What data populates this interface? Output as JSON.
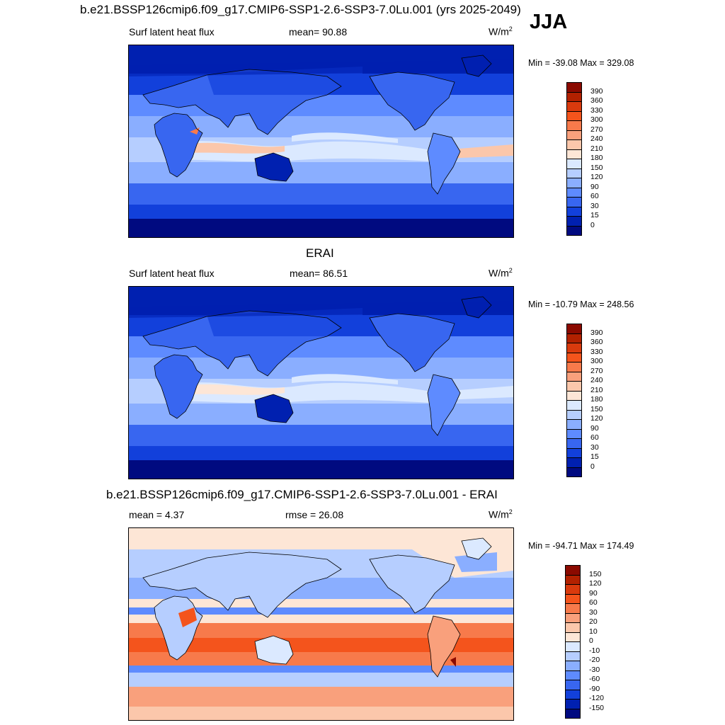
{
  "season": "JJA",
  "units": "W/m",
  "units_exp": "2",
  "panels": [
    {
      "id": "model",
      "title": "b.e21.BSSP126cmip6.f09_g17.CMIP6-SSP1-2.6-SSP3-7.0Lu.001 (yrs 2025-2049)",
      "left_label": "Surf latent heat flux",
      "center_label": "mean=  90.88",
      "minmax": "Min = -39.08 Max = 329.08",
      "colorbar": {
        "labels": [
          "390",
          "360",
          "330",
          "300",
          "270",
          "240",
          "210",
          "180",
          "150",
          "120",
          "90",
          "60",
          "30",
          "15",
          "0"
        ],
        "colors": [
          "#8b0a00",
          "#b22100",
          "#d93a0d",
          "#f4541c",
          "#f77a4b",
          "#f9a07c",
          "#fbc7ab",
          "#fde6d6",
          "#dbe9ff",
          "#b6ceff",
          "#8aaeff",
          "#5e8bff",
          "#3866f0",
          "#1240db",
          "#0020b0",
          "#000a80"
        ]
      }
    },
    {
      "id": "obs",
      "title": "ERAI",
      "left_label": "Surf latent heat flux",
      "center_label": "mean=  86.51",
      "minmax": "Min = -10.79 Max = 248.56",
      "colorbar": {
        "labels": [
          "390",
          "360",
          "330",
          "300",
          "270",
          "240",
          "210",
          "180",
          "150",
          "120",
          "90",
          "60",
          "30",
          "15",
          "0"
        ],
        "colors": [
          "#8b0a00",
          "#b22100",
          "#d93a0d",
          "#f4541c",
          "#f77a4b",
          "#f9a07c",
          "#fbc7ab",
          "#fde6d6",
          "#dbe9ff",
          "#b6ceff",
          "#8aaeff",
          "#5e8bff",
          "#3866f0",
          "#1240db",
          "#0020b0",
          "#000a80"
        ]
      }
    },
    {
      "id": "diff",
      "title": "b.e21.BSSP126cmip6.f09_g17.CMIP6-SSP1-2.6-SSP3-7.0Lu.001 - ERAI",
      "left_label": "mean =   4.37",
      "center_label": "rmse =  26.08",
      "minmax": "Min = -94.71 Max = 174.49",
      "colorbar": {
        "labels": [
          "150",
          "120",
          "90",
          "60",
          "30",
          "20",
          "10",
          "0",
          "-10",
          "-20",
          "-30",
          "-60",
          "-90",
          "-120",
          "-150"
        ],
        "colors": [
          "#8b0a00",
          "#b22100",
          "#d93a0d",
          "#f4541c",
          "#f77a4b",
          "#f9a07c",
          "#fbc7ab",
          "#fde6d6",
          "#dbe9ff",
          "#b6ceff",
          "#8aaeff",
          "#5e8bff",
          "#3866f0",
          "#1240db",
          "#0020b0",
          "#000a80"
        ]
      }
    }
  ]
}
